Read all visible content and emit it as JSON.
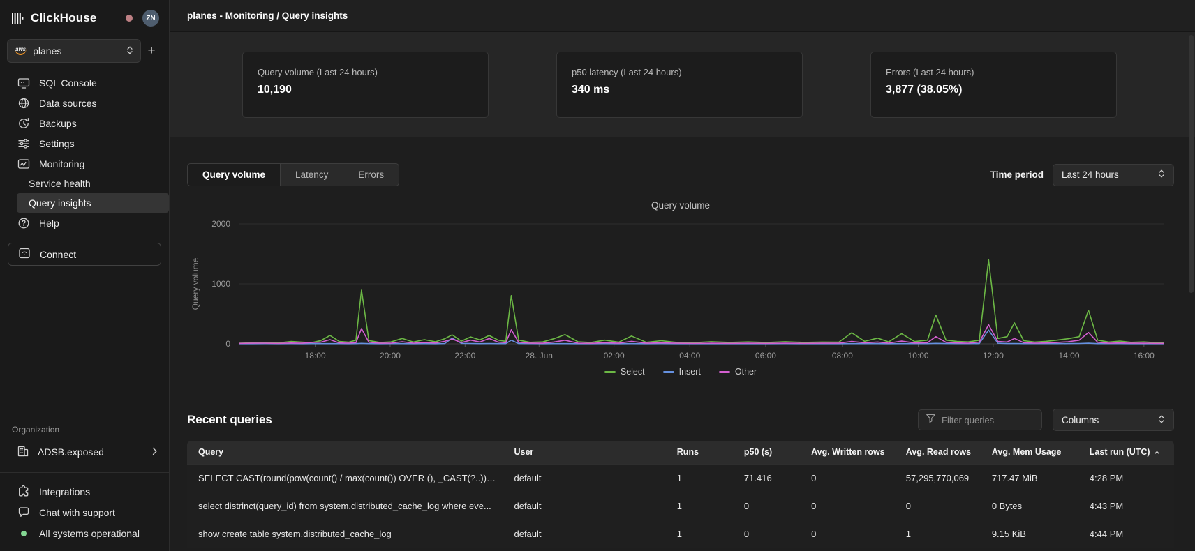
{
  "app": {
    "brand": "ClickHouse",
    "avatar_initials": "ZN"
  },
  "sidebar": {
    "service_selector": {
      "label": "planes",
      "provider": "aws"
    },
    "add_button": "+",
    "items": [
      {
        "label": "SQL Console"
      },
      {
        "label": "Data sources"
      },
      {
        "label": "Backups"
      },
      {
        "label": "Settings"
      },
      {
        "label": "Monitoring"
      },
      {
        "label": "Service health"
      },
      {
        "label": "Query insights"
      },
      {
        "label": "Help"
      }
    ],
    "active_item": "Query insights",
    "connect_button": "Connect",
    "organization": {
      "section_label": "Organization",
      "name": "ADSB.exposed"
    },
    "footer_items": [
      {
        "label": "Integrations"
      },
      {
        "label": "Chat with support"
      },
      {
        "label": "All systems operational",
        "status_color": "#84d793"
      }
    ]
  },
  "header": {
    "title": "planes - Monitoring / Query insights"
  },
  "stat_cards": [
    {
      "label": "Query volume (Last 24 hours)",
      "value": "10,190"
    },
    {
      "label": "p50 latency (Last 24 hours)",
      "value": "340 ms"
    },
    {
      "label": "Errors (Last 24 hours)",
      "value": "3,877 (38.05%)"
    }
  ],
  "chart_tabs": {
    "tabs": [
      "Query volume",
      "Latency",
      "Errors"
    ],
    "active": "Query volume"
  },
  "time_period": {
    "label": "Time period",
    "value": "Last 24 hours"
  },
  "chart_data": {
    "type": "line",
    "title": "Query volume",
    "ylabel": "Query volume",
    "ylim": [
      0,
      2000
    ],
    "yticks": [
      0,
      1000,
      2000
    ],
    "grid": "horizontal",
    "legend_position": "bottom",
    "xticks": [
      {
        "f": 0.082,
        "label": "18:00"
      },
      {
        "f": 0.163,
        "label": "20:00"
      },
      {
        "f": 0.244,
        "label": "22:00"
      },
      {
        "f": 0.324,
        "label": "28. Jun"
      },
      {
        "f": 0.405,
        "label": "02:00"
      },
      {
        "f": 0.487,
        "label": "04:00"
      },
      {
        "f": 0.569,
        "label": "06:00"
      },
      {
        "f": 0.652,
        "label": "08:00"
      },
      {
        "f": 0.734,
        "label": "10:00"
      },
      {
        "f": 0.815,
        "label": "12:00"
      },
      {
        "f": 0.897,
        "label": "14:00"
      },
      {
        "f": 0.978,
        "label": "16:00"
      }
    ],
    "series": [
      {
        "name": "Select",
        "color": "#6cb845",
        "col": 1
      },
      {
        "name": "Insert",
        "color": "#6691e0",
        "col": 2
      },
      {
        "name": "Other",
        "color": "#d45fd0",
        "col": 3
      }
    ],
    "points": [
      [
        0.0,
        12,
        2,
        8
      ],
      [
        0.014,
        18,
        2,
        10
      ],
      [
        0.028,
        25,
        3,
        12
      ],
      [
        0.042,
        15,
        2,
        8
      ],
      [
        0.056,
        40,
        3,
        14
      ],
      [
        0.068,
        28,
        2,
        10
      ],
      [
        0.078,
        20,
        3,
        22
      ],
      [
        0.088,
        55,
        3,
        28
      ],
      [
        0.098,
        140,
        4,
        70
      ],
      [
        0.108,
        40,
        3,
        15
      ],
      [
        0.118,
        28,
        2,
        12
      ],
      [
        0.126,
        60,
        3,
        20
      ],
      [
        0.132,
        895,
        8,
        255
      ],
      [
        0.14,
        55,
        4,
        25
      ],
      [
        0.152,
        22,
        2,
        10
      ],
      [
        0.164,
        32,
        3,
        12
      ],
      [
        0.176,
        90,
        3,
        35
      ],
      [
        0.188,
        30,
        2,
        12
      ],
      [
        0.2,
        70,
        3,
        22
      ],
      [
        0.212,
        35,
        2,
        14
      ],
      [
        0.222,
        85,
        5,
        42
      ],
      [
        0.23,
        150,
        95,
        80
      ],
      [
        0.24,
        45,
        8,
        22
      ],
      [
        0.25,
        115,
        6,
        62
      ],
      [
        0.26,
        65,
        4,
        30
      ],
      [
        0.27,
        140,
        5,
        88
      ],
      [
        0.28,
        60,
        4,
        28
      ],
      [
        0.288,
        42,
        3,
        20
      ],
      [
        0.294,
        805,
        60,
        235
      ],
      [
        0.302,
        62,
        5,
        26
      ],
      [
        0.314,
        26,
        3,
        12
      ],
      [
        0.328,
        32,
        2,
        10
      ],
      [
        0.34,
        85,
        3,
        30
      ],
      [
        0.352,
        155,
        4,
        60
      ],
      [
        0.366,
        35,
        2,
        12
      ],
      [
        0.38,
        22,
        2,
        8
      ],
      [
        0.395,
        62,
        3,
        20
      ],
      [
        0.41,
        28,
        2,
        10
      ],
      [
        0.424,
        130,
        3,
        42
      ],
      [
        0.44,
        25,
        2,
        10
      ],
      [
        0.456,
        52,
        3,
        16
      ],
      [
        0.472,
        26,
        2,
        10
      ],
      [
        0.49,
        20,
        2,
        8
      ],
      [
        0.51,
        36,
        2,
        10
      ],
      [
        0.53,
        24,
        2,
        8
      ],
      [
        0.55,
        32,
        2,
        10
      ],
      [
        0.57,
        22,
        2,
        8
      ],
      [
        0.59,
        36,
        3,
        12
      ],
      [
        0.61,
        24,
        2,
        8
      ],
      [
        0.63,
        30,
        2,
        10
      ],
      [
        0.648,
        28,
        2,
        10
      ],
      [
        0.662,
        185,
        4,
        40
      ],
      [
        0.676,
        42,
        3,
        16
      ],
      [
        0.69,
        95,
        3,
        30
      ],
      [
        0.702,
        32,
        2,
        12
      ],
      [
        0.716,
        170,
        4,
        45
      ],
      [
        0.73,
        38,
        3,
        14
      ],
      [
        0.744,
        62,
        4,
        20
      ],
      [
        0.753,
        480,
        8,
        120
      ],
      [
        0.764,
        62,
        5,
        25
      ],
      [
        0.776,
        40,
        3,
        15
      ],
      [
        0.788,
        32,
        3,
        12
      ],
      [
        0.8,
        60,
        5,
        28
      ],
      [
        0.81,
        1400,
        230,
        320
      ],
      [
        0.82,
        90,
        10,
        40
      ],
      [
        0.83,
        120,
        5,
        30
      ],
      [
        0.838,
        350,
        6,
        90
      ],
      [
        0.848,
        52,
        4,
        20
      ],
      [
        0.86,
        30,
        3,
        12
      ],
      [
        0.872,
        42,
        3,
        15
      ],
      [
        0.884,
        62,
        4,
        22
      ],
      [
        0.896,
        85,
        5,
        35
      ],
      [
        0.908,
        120,
        6,
        60
      ],
      [
        0.918,
        560,
        10,
        190
      ],
      [
        0.928,
        62,
        4,
        25
      ],
      [
        0.94,
        30,
        3,
        10
      ],
      [
        0.952,
        46,
        3,
        15
      ],
      [
        0.964,
        26,
        2,
        10
      ],
      [
        0.978,
        32,
        2,
        12
      ],
      [
        0.99,
        20,
        2,
        8
      ],
      [
        1.0,
        15,
        2,
        8
      ]
    ]
  },
  "recent_queries": {
    "title": "Recent queries",
    "filter_placeholder": "Filter queries",
    "columns_button": "Columns",
    "table": {
      "headers": [
        "Query",
        "User",
        "Runs",
        "p50 (s)",
        "Avg. Written rows",
        "Avg. Read rows",
        "Avg. Mem Usage",
        "Last run (UTC)"
      ],
      "sort": {
        "column": "Last run (UTC)",
        "direction": "asc"
      },
      "col_widths_pct": [
        32,
        16.5,
        6.8,
        6.8,
        9.6,
        8.7,
        9.9,
        9.7
      ],
      "rows": [
        [
          "SELECT CAST(round(pow(count() / max(count()) OVER (), _CAST(?..)) * ...",
          "default",
          "1",
          "71.416",
          "0",
          "57,295,770,069",
          "717.47 MiB",
          "4:28 PM"
        ],
        [
          "select distrinct(query_id) from system.distributed_cache_log where eve...",
          "default",
          "1",
          "0",
          "0",
          "0",
          "0 Bytes",
          "4:43 PM"
        ],
        [
          "show create table system.distributed_cache_log",
          "default",
          "1",
          "0",
          "0",
          "1",
          "9.15 KiB",
          "4:44 PM"
        ]
      ]
    }
  }
}
